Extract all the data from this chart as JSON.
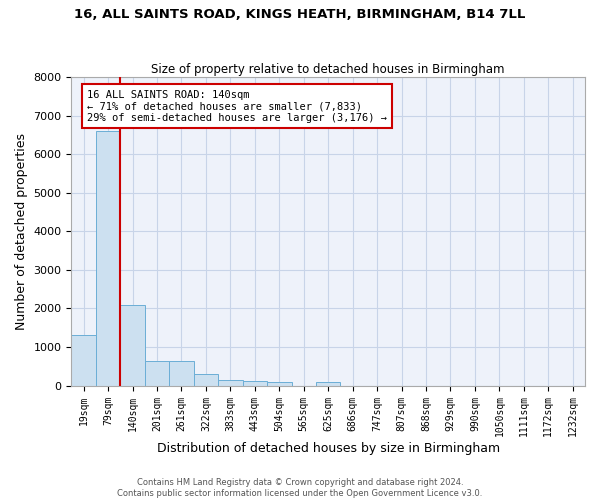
{
  "title_line1": "16, ALL SAINTS ROAD, KINGS HEATH, BIRMINGHAM, B14 7LL",
  "title_line2": "Size of property relative to detached houses in Birmingham",
  "xlabel": "Distribution of detached houses by size in Birmingham",
  "ylabel": "Number of detached properties",
  "bar_labels": [
    "19sqm",
    "79sqm",
    "140sqm",
    "201sqm",
    "261sqm",
    "322sqm",
    "383sqm",
    "443sqm",
    "504sqm",
    "565sqm",
    "625sqm",
    "686sqm",
    "747sqm",
    "807sqm",
    "868sqm",
    "929sqm",
    "990sqm",
    "1050sqm",
    "1111sqm",
    "1172sqm",
    "1232sqm"
  ],
  "bar_values": [
    1300,
    6600,
    2100,
    650,
    650,
    300,
    140,
    110,
    90,
    0,
    90,
    0,
    0,
    0,
    0,
    0,
    0,
    0,
    0,
    0,
    0
  ],
  "bar_color": "#cce0f0",
  "bar_edgecolor": "#6baed6",
  "property_line_index": 2,
  "annotation_text_line1": "16 ALL SAINTS ROAD: 140sqm",
  "annotation_text_line2": "← 71% of detached houses are smaller (7,833)",
  "annotation_text_line3": "29% of semi-detached houses are larger (3,176) →",
  "red_line_color": "#cc0000",
  "annotation_box_edgecolor": "#cc0000",
  "grid_color": "#c8d4e8",
  "background_color": "#eef2fa",
  "ylim": [
    0,
    8000
  ],
  "yticks": [
    0,
    1000,
    2000,
    3000,
    4000,
    5000,
    6000,
    7000,
    8000
  ],
  "footer_line1": "Contains HM Land Registry data © Crown copyright and database right 2024.",
  "footer_line2": "Contains public sector information licensed under the Open Government Licence v3.0."
}
